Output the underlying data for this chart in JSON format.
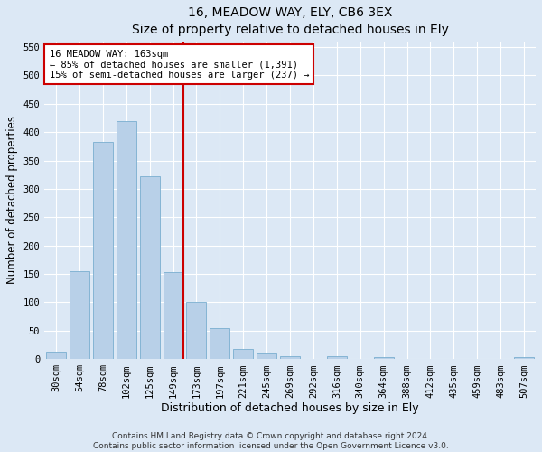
{
  "title": "16, MEADOW WAY, ELY, CB6 3EX",
  "subtitle": "Size of property relative to detached houses in Ely",
  "xlabel": "Distribution of detached houses by size in Ely",
  "ylabel": "Number of detached properties",
  "categories": [
    "30sqm",
    "54sqm",
    "78sqm",
    "102sqm",
    "125sqm",
    "149sqm",
    "173sqm",
    "197sqm",
    "221sqm",
    "245sqm",
    "269sqm",
    "292sqm",
    "316sqm",
    "340sqm",
    "364sqm",
    "388sqm",
    "412sqm",
    "435sqm",
    "459sqm",
    "483sqm",
    "507sqm"
  ],
  "values": [
    13,
    155,
    382,
    420,
    322,
    153,
    100,
    55,
    18,
    10,
    5,
    0,
    5,
    0,
    3,
    0,
    0,
    0,
    0,
    0,
    3
  ],
  "bar_color": "#b8d0e8",
  "bar_edge_color": "#7aaed0",
  "annotation_text": "16 MEADOW WAY: 163sqm\n← 85% of detached houses are smaller (1,391)\n15% of semi-detached houses are larger (237) →",
  "annotation_box_color": "#ffffff",
  "annotation_box_edge": "#cc0000",
  "vline_color": "#cc0000",
  "ylim": [
    0,
    560
  ],
  "yticks": [
    0,
    50,
    100,
    150,
    200,
    250,
    300,
    350,
    400,
    450,
    500,
    550
  ],
  "footer_line1": "Contains HM Land Registry data © Crown copyright and database right 2024.",
  "footer_line2": "Contains public sector information licensed under the Open Government Licence v3.0.",
  "bg_color": "#dce8f5",
  "plot_bg_color": "#dce8f5",
  "grid_color": "#ffffff",
  "title_fontsize": 10,
  "axis_label_fontsize": 8.5,
  "tick_fontsize": 7.5,
  "annotation_fontsize": 7.5,
  "footer_fontsize": 6.5,
  "vline_bin": 5
}
